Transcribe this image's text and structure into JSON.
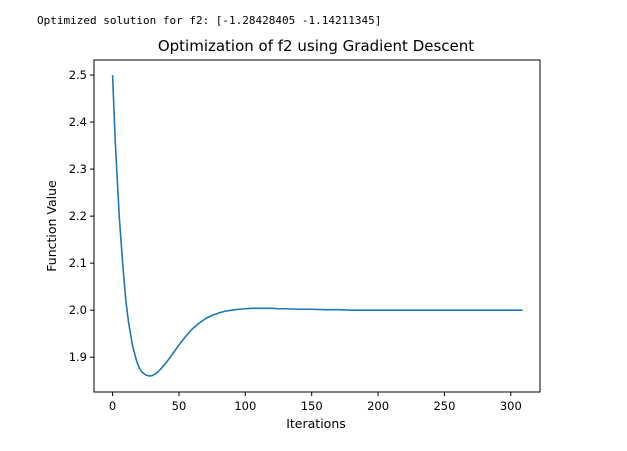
{
  "output": {
    "text": "Optimized solution for f2: [-1.28428405 -1.14211345]"
  },
  "chart_data": {
    "type": "line",
    "title": "Optimization of f2 using Gradient Descent",
    "xlabel": "Iterations",
    "ylabel": "Function Value",
    "xlim": [
      -14,
      322
    ],
    "ylim": [
      1.826,
      2.532
    ],
    "xticks": [
      0,
      50,
      100,
      150,
      200,
      250,
      300
    ],
    "yticks": [
      1.9,
      2.0,
      2.1,
      2.2,
      2.3,
      2.4,
      2.5
    ],
    "grid": false,
    "line_color": "#1f77b4",
    "series": [
      {
        "x": [
          0,
          2,
          5,
          8,
          10,
          12,
          15,
          18,
          20,
          22,
          25,
          28,
          30,
          33,
          36,
          40,
          45,
          50,
          55,
          60,
          65,
          70,
          75,
          80,
          85,
          90,
          95,
          100,
          105,
          110,
          115,
          120,
          125,
          130,
          140,
          150,
          160,
          170,
          180,
          190,
          200,
          220,
          240,
          260,
          280,
          300,
          309
        ],
        "y": [
          2.5,
          2.36,
          2.2,
          2.085,
          2.02,
          1.975,
          1.925,
          1.893,
          1.878,
          1.869,
          1.862,
          1.86,
          1.861,
          1.866,
          1.874,
          1.887,
          1.906,
          1.926,
          1.944,
          1.96,
          1.972,
          1.982,
          1.989,
          1.994,
          1.998,
          2.0,
          2.002,
          2.003,
          2.004,
          2.004,
          2.004,
          2.004,
          2.003,
          2.003,
          2.002,
          2.002,
          2.001,
          2.001,
          2.0,
          2.0,
          2.0,
          2.0,
          2.0,
          2.0,
          2.0,
          2.0,
          2.0
        ]
      }
    ]
  }
}
